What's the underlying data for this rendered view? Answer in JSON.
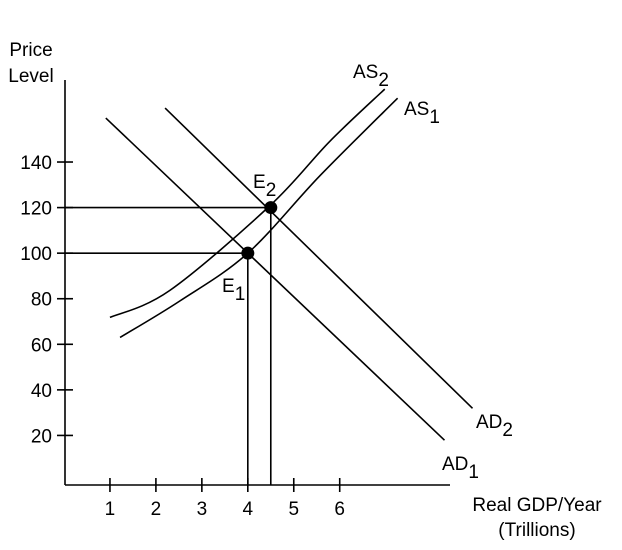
{
  "chart_data": {
    "type": "line",
    "y_label": [
      "Price",
      "Level"
    ],
    "x_label": [
      "Real GDP/Year",
      "(Trillions)"
    ],
    "xlim": [
      0,
      8.4
    ],
    "ylim": [
      0,
      176
    ],
    "xticks": [
      1,
      2,
      3,
      4,
      5,
      6
    ],
    "yticks": [
      20,
      40,
      60,
      80,
      100,
      120,
      140
    ],
    "color": "#000000",
    "series": [
      {
        "name": "AD",
        "sub": "1",
        "x": [
          0.91,
          8.28
        ],
        "values": [
          159.3,
          17.9
        ]
      },
      {
        "name": "AD",
        "sub": "2",
        "x": [
          2.2,
          8.89
        ],
        "values": [
          163.7,
          31.9
        ]
      },
      {
        "name": "AS",
        "sub": "1",
        "x": [
          1.22,
          2.52,
          4,
          5.57,
          7.26
        ],
        "values": [
          63,
          79,
          100,
          134,
          168
        ]
      },
      {
        "name": "AS",
        "sub": "2",
        "x": [
          1.0,
          2.3,
          4.48,
          5.78,
          6.98
        ],
        "values": [
          71.8,
          83.6,
          120.8,
          149,
          172
        ]
      }
    ],
    "points": [
      {
        "name": "E",
        "sub": "1",
        "x": 4,
        "value": 100
      },
      {
        "name": "E",
        "sub": "2",
        "x": 4.5,
        "value": 120
      }
    ]
  }
}
